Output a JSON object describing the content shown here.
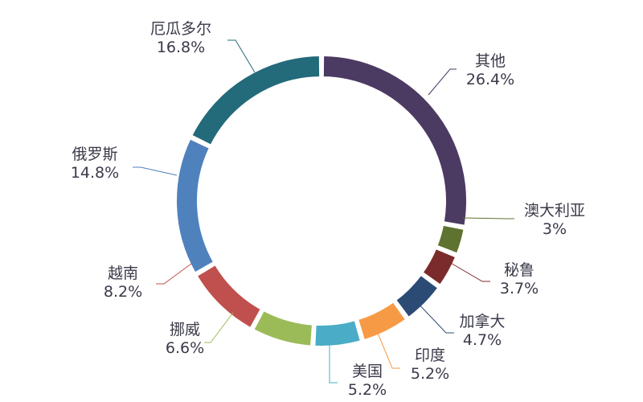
{
  "chart_data": {
    "type": "pie",
    "variant": "donut",
    "title": "",
    "legend": "none",
    "slices": [
      {
        "label": "其他",
        "value": 26.4,
        "display": "26.4%",
        "color": "#4b3a62"
      },
      {
        "label": "澳大利亚",
        "value": 3.0,
        "display": "3%",
        "color": "#5e7330"
      },
      {
        "label": "秘鲁",
        "value": 3.7,
        "display": "3.7%",
        "color": "#7b2b2b"
      },
      {
        "label": "加拿大",
        "value": 4.7,
        "display": "4.7%",
        "color": "#2c4b74"
      },
      {
        "label": "印度",
        "value": 5.2,
        "display": "5.2%",
        "color": "#f79a45"
      },
      {
        "label": "美国",
        "value": 5.2,
        "display": "5.2%",
        "color": "#4aacc6"
      },
      {
        "label": "挪威",
        "value": 6.6,
        "display": "6.6%",
        "color": "#8064a2"
      },
      {
        "label": "越南",
        "value": 8.2,
        "display": "8.2%",
        "color": "#9bbb59"
      },
      {
        "label": "俄罗斯",
        "value": 14.8,
        "display": "14.8%",
        "color": "#c0504d"
      },
      {
        "label": "厄瓜多尔",
        "value": 16.8,
        "display": "16.8%",
        "color": "#4f81bd"
      }
    ]
  }
}
